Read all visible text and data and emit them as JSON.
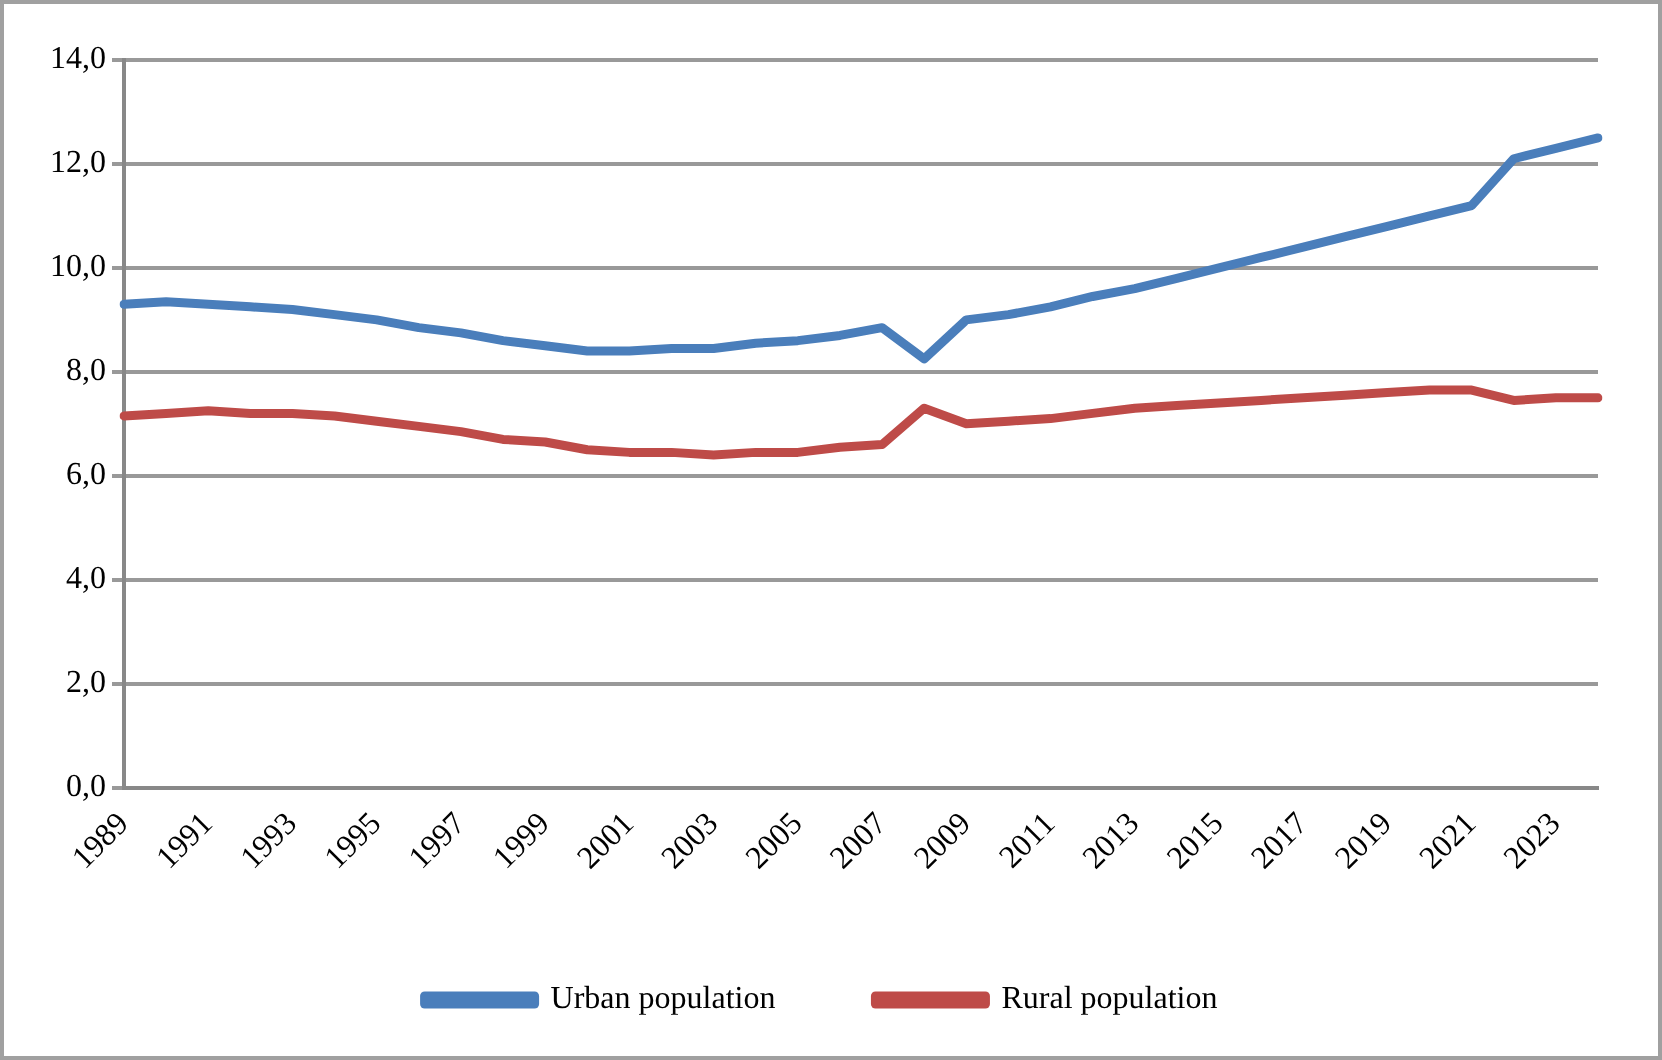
{
  "chart_data": {
    "type": "line",
    "categories": [
      "1989",
      null,
      "1991",
      null,
      "1993",
      null,
      "1995",
      null,
      "1997",
      null,
      "1999",
      null,
      "2001",
      null,
      "2003",
      null,
      "2005",
      null,
      "2007",
      null,
      "2009",
      null,
      "2011",
      null,
      "2013",
      null,
      "2015",
      null,
      "2017",
      null,
      "2019",
      null,
      "2021",
      null,
      "2023",
      null
    ],
    "series": [
      {
        "name": "Urban population",
        "color": "#4a7ebb",
        "values": [
          9.3,
          9.35,
          9.3,
          9.25,
          9.2,
          9.1,
          9.0,
          8.85,
          8.75,
          8.6,
          8.5,
          8.4,
          8.4,
          8.45,
          8.45,
          8.55,
          8.6,
          8.7,
          8.85,
          8.25,
          9.0,
          9.1,
          9.25,
          9.45,
          9.6,
          9.8,
          10.0,
          10.2,
          10.4,
          10.6,
          10.8,
          11.0,
          11.2,
          12.1,
          12.3,
          12.5
        ]
      },
      {
        "name": "Rural population",
        "color": "#be4b48",
        "values": [
          7.15,
          7.2,
          7.25,
          7.2,
          7.2,
          7.15,
          7.05,
          6.95,
          6.85,
          6.7,
          6.65,
          6.5,
          6.45,
          6.45,
          6.4,
          6.45,
          6.45,
          6.55,
          6.6,
          7.3,
          7.0,
          7.05,
          7.1,
          7.2,
          7.3,
          7.35,
          7.4,
          7.45,
          7.5,
          7.55,
          7.6,
          7.65,
          7.65,
          7.45,
          7.5,
          7.5
        ]
      }
    ],
    "ylim": [
      0,
      14
    ],
    "yticks": [
      {
        "value": 0,
        "label": "0,0"
      },
      {
        "value": 2,
        "label": "2,0"
      },
      {
        "value": 4,
        "label": "4,0"
      },
      {
        "value": 6,
        "label": "6,0"
      },
      {
        "value": 8,
        "label": "8,0"
      },
      {
        "value": 10,
        "label": "10,0"
      },
      {
        "value": 12,
        "label": "12,0"
      },
      {
        "value": 14,
        "label": "14,0"
      }
    ],
    "grid": "y",
    "legend": "bottom",
    "marker": "none",
    "line_style": "solid"
  }
}
